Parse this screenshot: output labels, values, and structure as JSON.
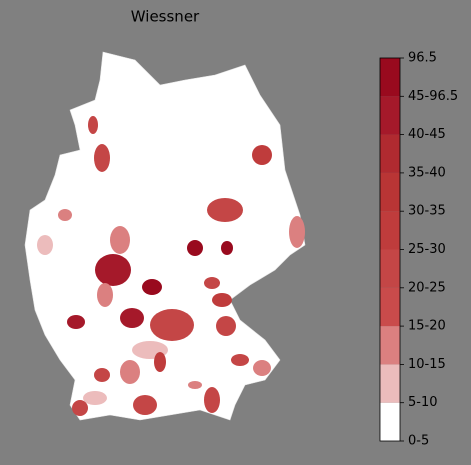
{
  "title": "Wiessner",
  "colorbar": {
    "labels": [
      "0-5",
      "5-10",
      "10-15",
      "15-20",
      "20-25",
      "25-30",
      "30-35",
      "35-40",
      "40-45",
      "45-96.5",
      "96.5"
    ],
    "colors": [
      "#ffffff",
      "#ecbcbc",
      "#db8080",
      "#c94b4b",
      "#c44646",
      "#bf3c3c",
      "#b93535",
      "#b02a30",
      "#a5192a",
      "#990a1e"
    ]
  }
}
